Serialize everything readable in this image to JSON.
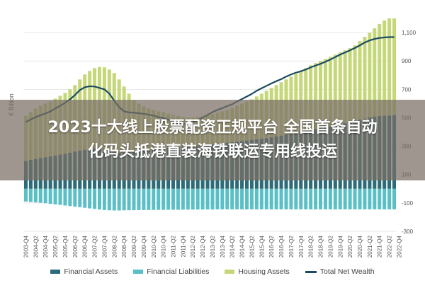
{
  "chart_data": {
    "type": "bar",
    "ylabel": "€ Billion",
    "ylim": [
      -300,
      1200
    ],
    "yticks": [
      1100,
      900,
      700,
      500,
      300,
      100,
      -100,
      -300
    ],
    "quarters": [
      "2003-Q4",
      "2004-Q1",
      "2004-Q2",
      "2004-Q3",
      "2004-Q4",
      "2005-Q1",
      "2005-Q2",
      "2005-Q3",
      "2005-Q4",
      "2006-Q1",
      "2006-Q2",
      "2006-Q3",
      "2006-Q4",
      "2007-Q1",
      "2007-Q2",
      "2007-Q3",
      "2007-Q4",
      "2008-Q1",
      "2008-Q2",
      "2008-Q3",
      "2008-Q4",
      "2009-Q1",
      "2009-Q2",
      "2009-Q3",
      "2009-Q4",
      "2010-Q1",
      "2010-Q2",
      "2010-Q3",
      "2010-Q4",
      "2011-Q1",
      "2011-Q2",
      "2011-Q3",
      "2011-Q4",
      "2012-Q1",
      "2012-Q2",
      "2012-Q3",
      "2012-Q4",
      "2013-Q1",
      "2013-Q2",
      "2013-Q3",
      "2013-Q4",
      "2014-Q1",
      "2014-Q2",
      "2014-Q3",
      "2014-Q4",
      "2015-Q1",
      "2015-Q2",
      "2015-Q3",
      "2015-Q4",
      "2016-Q1",
      "2016-Q2",
      "2016-Q3",
      "2016-Q4",
      "2017-Q1",
      "2017-Q2",
      "2017-Q3",
      "2017-Q4",
      "2018-Q1",
      "2018-Q2",
      "2018-Q3",
      "2018-Q4",
      "2019-Q1",
      "2019-Q2",
      "2019-Q3",
      "2019-Q4",
      "2020-Q1",
      "2020-Q2",
      "2020-Q3",
      "2020-Q4",
      "2021-Q1",
      "2021-Q2",
      "2021-Q3",
      "2021-Q4",
      "2022-Q1",
      "2022-Q2",
      "2022-Q3"
    ],
    "tick_labels": [
      "2003-Q4",
      "2004-Q2",
      "2004-Q4",
      "2005-Q2",
      "2005-Q4",
      "2006-Q2",
      "2006-Q4",
      "2007-Q2",
      "2007-Q4",
      "2008-Q2",
      "2008-Q4",
      "2009-Q2",
      "2009-Q4",
      "2010-Q2",
      "2010-Q4",
      "2011-Q2",
      "2011-Q4",
      "2012-Q2",
      "2012-Q4",
      "2013-Q2",
      "2013-Q4",
      "2014-Q2",
      "2014-Q4",
      "2015-Q2",
      "2015-Q4",
      "2016-Q2",
      "2016-Q4",
      "2017-Q2",
      "2017-Q4",
      "2018-Q2",
      "2018-Q4",
      "2019-Q2",
      "2019-Q4",
      "2020-Q2",
      "2020-Q4",
      "2021-Q2",
      "2021-Q4",
      "2022-Q2",
      "2022-Q4"
    ],
    "series": [
      {
        "name": "Financial Assets",
        "kind": "bar",
        "color": "#2e6b7a",
        "values": [
          195,
          203,
          210,
          216,
          221,
          227,
          234,
          240,
          246,
          254,
          262,
          268,
          274,
          280,
          284,
          282,
          276,
          266,
          258,
          252,
          254,
          258,
          262,
          266,
          270,
          276,
          278,
          280,
          284,
          286,
          290,
          292,
          292,
          294,
          296,
          300,
          304,
          308,
          312,
          316,
          320,
          324,
          328,
          332,
          336,
          340,
          344,
          348,
          352,
          356,
          362,
          368,
          374,
          380,
          386,
          394,
          400,
          406,
          414,
          420,
          426,
          432,
          440,
          448,
          456,
          462,
          470,
          478,
          486,
          494,
          502,
          508,
          512,
          514,
          516,
          518
        ]
      },
      {
        "name": "Financial Liabilities",
        "kind": "bar",
        "color": "#5bc0c6",
        "values": [
          -90,
          -93,
          -96,
          -99,
          -102,
          -106,
          -110,
          -114,
          -118,
          -122,
          -126,
          -130,
          -134,
          -138,
          -142,
          -146,
          -150,
          -152,
          -153,
          -153,
          -152,
          -151,
          -151,
          -150,
          -150,
          -150,
          -149,
          -149,
          -149,
          -148,
          -148,
          -148,
          -147,
          -147,
          -147,
          -146,
          -146,
          -146,
          -146,
          -145,
          -145,
          -145,
          -145,
          -145,
          -145,
          -145,
          -145,
          -145,
          -145,
          -145,
          -145,
          -145,
          -145,
          -145,
          -145,
          -145,
          -145,
          -145,
          -145,
          -145,
          -145,
          -145,
          -145,
          -145,
          -145,
          -145,
          -145,
          -145,
          -145,
          -145,
          -145,
          -145,
          -145,
          -145,
          -145,
          -145
        ]
      },
      {
        "name": "Housing Assets",
        "kind": "bar",
        "color": "#c5d879",
        "values": [
          515,
          540,
          565,
          585,
          600,
          615,
          635,
          655,
          675,
          700,
          730,
          770,
          805,
          830,
          850,
          858,
          855,
          840,
          815,
          770,
          720,
          670,
          625,
          600,
          580,
          565,
          555,
          545,
          540,
          530,
          520,
          512,
          505,
          500,
          502,
          505,
          510,
          518,
          526,
          535,
          545,
          555,
          570,
          585,
          600,
          615,
          630,
          650,
          670,
          690,
          710,
          730,
          750,
          770,
          790,
          810,
          830,
          850,
          870,
          885,
          900,
          915,
          930,
          945,
          960,
          975,
          990,
          1010,
          1040,
          1070,
          1100,
          1130,
          1160,
          1185,
          1200,
          1200
        ]
      },
      {
        "name": "Total Net Wealth",
        "kind": "line",
        "color": "#1b4b5e",
        "values": [
          470,
          488,
          505,
          518,
          530,
          545,
          565,
          585,
          605,
          630,
          660,
          695,
          715,
          722,
          720,
          710,
          700,
          670,
          620,
          575,
          545,
          538,
          536,
          532,
          528,
          522,
          515,
          505,
          498,
          487,
          475,
          460,
          453,
          458,
          470,
          485,
          502,
          520,
          540,
          555,
          568,
          582,
          595,
          615,
          632,
          650,
          668,
          690,
          708,
          725,
          742,
          758,
          772,
          790,
          805,
          818,
          828,
          840,
          855,
          868,
          880,
          895,
          910,
          928,
          945,
          960,
          975,
          992,
          1010,
          1030,
          1045,
          1055,
          1062,
          1066,
          1068,
          1068
        ]
      }
    ]
  },
  "banner": {
    "line1": "2023十大线上股票配资正规平台 全国首条自动",
    "line2": "化码头抵港直装海铁联运专用线投运"
  },
  "legend": [
    {
      "label": "Financial Assets",
      "color": "#2e6b7a",
      "kind": "bar"
    },
    {
      "label": "Financial Liabilities",
      "color": "#5bc0c6",
      "kind": "bar"
    },
    {
      "label": "Housing Assets",
      "color": "#c5d879",
      "kind": "bar"
    },
    {
      "label": "Total Net Wealth",
      "color": "#1b4b5e",
      "kind": "line"
    }
  ]
}
